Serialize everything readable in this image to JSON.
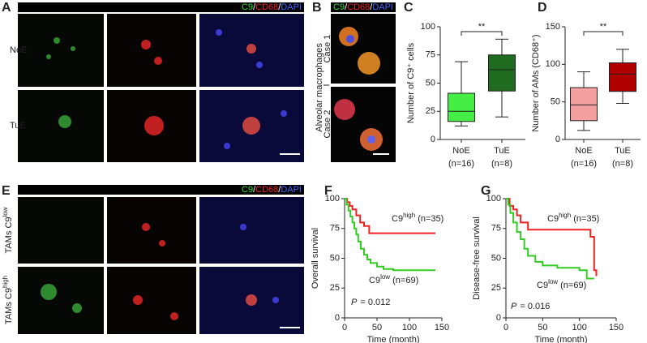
{
  "panels": {
    "A": {
      "label": "A",
      "header": [
        "C9",
        "CD68",
        "DAPI"
      ],
      "separator": "/",
      "rows": [
        "NoE",
        "TuE"
      ]
    },
    "B": {
      "label": "B",
      "header": [
        "C9",
        "CD68",
        "DAPI"
      ],
      "separator": "/",
      "side_label": "Alveolar macrophages",
      "rows": [
        "Case 1",
        "Case 2"
      ]
    },
    "E": {
      "label": "E",
      "header": [
        "C9",
        "CD68",
        "DAPI"
      ],
      "separator": "/",
      "rows": [
        {
          "base": "TAMs C9",
          "sup": "low"
        },
        {
          "base": "TAMs C9",
          "sup": "high"
        }
      ]
    }
  },
  "chart_data": [
    {
      "type": "box",
      "panel_label": "C",
      "ylabel": "Number of C9⁺ cells",
      "categories": [
        "NoE",
        "TuE"
      ],
      "sublabels": [
        "(n=16)",
        "(n=8)"
      ],
      "boxes": [
        {
          "min": 12,
          "q1": 16,
          "median": 25,
          "q3": 41,
          "max": 69
        },
        {
          "min": 20,
          "q1": 43,
          "median": 62,
          "q3": 75,
          "max": 89
        }
      ],
      "colors": [
        "#44ee44",
        "#1f6b1f"
      ],
      "ylim": [
        0,
        100
      ],
      "yticks": [
        0,
        25,
        50,
        75,
        100
      ],
      "significance": "**"
    },
    {
      "type": "box",
      "panel_label": "D",
      "ylabel": "Number of  AMs (CD68⁺)",
      "categories": [
        "NoE",
        "TuE"
      ],
      "sublabels": [
        "(n=16)",
        "(n=8)"
      ],
      "boxes": [
        {
          "min": 12,
          "q1": 25,
          "median": 46,
          "q3": 69,
          "max": 90
        },
        {
          "min": 48,
          "q1": 64,
          "median": 87,
          "q3": 102,
          "max": 120
        }
      ],
      "colors": [
        "#f4a0a0",
        "#b00000"
      ],
      "ylim": [
        0,
        150
      ],
      "yticks": [
        0,
        50,
        100,
        150
      ],
      "significance": "**"
    },
    {
      "type": "km",
      "panel_label": "F",
      "ylabel": "Overall survival",
      "xlabel": "Time (month)",
      "xlim": [
        0,
        150
      ],
      "xticks": [
        0,
        50,
        100,
        150
      ],
      "ylim": [
        0,
        100
      ],
      "yticks": [
        0,
        25,
        50,
        75,
        100
      ],
      "p_label": "P",
      "p_value": "= 0.012",
      "series": [
        {
          "label": {
            "base": "C9",
            "sup": "high",
            "rest": " (n=35)"
          },
          "color": "#ee2222",
          "x": [
            0,
            4,
            8,
            12,
            18,
            24,
            30,
            38,
            140
          ],
          "values": [
            100,
            97,
            94,
            91,
            86,
            80,
            77,
            71,
            71
          ]
        },
        {
          "label": {
            "base": "C9",
            "sup": "low",
            "rest": " (n=69)"
          },
          "color": "#33cc22",
          "x": [
            0,
            3,
            6,
            9,
            12,
            15,
            18,
            21,
            25,
            30,
            35,
            40,
            50,
            60,
            75,
            140
          ],
          "values": [
            100,
            95,
            90,
            85,
            80,
            75,
            70,
            64,
            58,
            53,
            49,
            46,
            43,
            41,
            40,
            40
          ]
        }
      ]
    },
    {
      "type": "km",
      "panel_label": "G",
      "ylabel": "Disease-free survival",
      "xlabel": "Time (month)",
      "xlim": [
        0,
        150
      ],
      "xticks": [
        0,
        50,
        100,
        150
      ],
      "ylim": [
        0,
        100
      ],
      "yticks": [
        0,
        25,
        50,
        75,
        100
      ],
      "p_label": "P",
      "p_value": "= 0.016",
      "series": [
        {
          "label": {
            "base": "C9",
            "sup": "high",
            "rest": " (n=35)"
          },
          "color": "#ee2222",
          "x": [
            0,
            5,
            10,
            15,
            20,
            30,
            100,
            115,
            120,
            123
          ],
          "values": [
            100,
            94,
            91,
            86,
            80,
            74,
            74,
            68,
            40,
            35
          ]
        },
        {
          "label": {
            "base": "C9",
            "sup": "low",
            "rest": " (n=69)"
          },
          "color": "#33cc22",
          "x": [
            0,
            3,
            6,
            10,
            15,
            20,
            25,
            30,
            40,
            50,
            70,
            100,
            110,
            120
          ],
          "values": [
            100,
            95,
            88,
            80,
            72,
            66,
            58,
            52,
            47,
            44,
            42,
            40,
            33,
            33
          ]
        }
      ]
    }
  ]
}
